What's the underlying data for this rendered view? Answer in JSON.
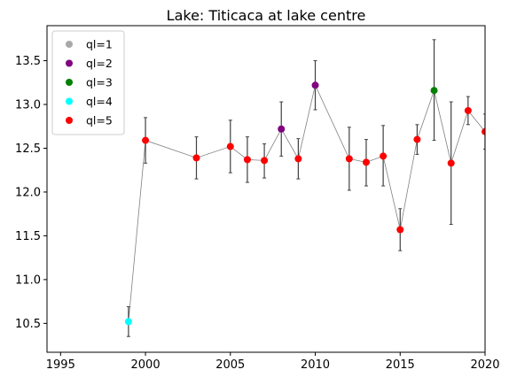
{
  "chart_data": {
    "type": "scatter",
    "title": "Lake: Titicaca at lake centre",
    "xlabel": "",
    "ylabel": "",
    "xlim": [
      1994.2,
      2020
    ],
    "ylim": [
      10.17,
      13.9
    ],
    "xticks": [
      1995,
      2000,
      2005,
      2010,
      2015,
      2020
    ],
    "xtick_labels": [
      "1995",
      "2000",
      "2005",
      "2010",
      "2015",
      "2020"
    ],
    "yticks": [
      10.5,
      11.0,
      11.5,
      12.0,
      12.5,
      13.0,
      13.5
    ],
    "ytick_labels": [
      "10.5",
      "11.0",
      "11.5",
      "12.0",
      "12.5",
      "13.0",
      "13.5"
    ],
    "grid": false,
    "legend_position": "top-left",
    "connecting_line_color": "#808080",
    "errorbar_color": "#404040",
    "legend": [
      {
        "label": "ql=1",
        "color": "#a9a9a9"
      },
      {
        "label": "ql=2",
        "color": "#800080"
      },
      {
        "label": "ql=3",
        "color": "#008000"
      },
      {
        "label": "ql=4",
        "color": "#00ffff"
      },
      {
        "label": "ql=5",
        "color": "#ff0000"
      }
    ],
    "points": [
      {
        "x": 1999,
        "y": 10.52,
        "ymin": 10.35,
        "ymax": 10.69,
        "ql": 4
      },
      {
        "x": 2000,
        "y": 12.59,
        "ymin": 12.33,
        "ymax": 12.85,
        "ql": 5
      },
      {
        "x": 2003,
        "y": 12.39,
        "ymin": 12.15,
        "ymax": 12.63,
        "ql": 5
      },
      {
        "x": 2005,
        "y": 12.52,
        "ymin": 12.22,
        "ymax": 12.82,
        "ql": 5
      },
      {
        "x": 2006,
        "y": 12.37,
        "ymin": 12.11,
        "ymax": 12.63,
        "ql": 5
      },
      {
        "x": 2007,
        "y": 12.36,
        "ymin": 12.16,
        "ymax": 12.55,
        "ql": 5
      },
      {
        "x": 2008,
        "y": 12.72,
        "ymin": 12.41,
        "ymax": 13.03,
        "ql": 2
      },
      {
        "x": 2009,
        "y": 12.38,
        "ymin": 12.15,
        "ymax": 12.61,
        "ql": 5
      },
      {
        "x": 2010,
        "y": 13.22,
        "ymin": 12.94,
        "ymax": 13.5,
        "ql": 2
      },
      {
        "x": 2012,
        "y": 12.38,
        "ymin": 12.02,
        "ymax": 12.74,
        "ql": 5
      },
      {
        "x": 2013,
        "y": 12.34,
        "ymin": 12.07,
        "ymax": 12.6,
        "ql": 5
      },
      {
        "x": 2014,
        "y": 12.41,
        "ymin": 12.07,
        "ymax": 12.76,
        "ql": 5
      },
      {
        "x": 2015,
        "y": 11.57,
        "ymin": 11.33,
        "ymax": 11.81,
        "ql": 5
      },
      {
        "x": 2016,
        "y": 12.6,
        "ymin": 12.43,
        "ymax": 12.77,
        "ql": 5
      },
      {
        "x": 2017,
        "y": 13.16,
        "ymin": 12.59,
        "ymax": 13.74,
        "ql": 3
      },
      {
        "x": 2018,
        "y": 12.33,
        "ymin": 11.63,
        "ymax": 13.03,
        "ql": 5
      },
      {
        "x": 2019,
        "y": 12.93,
        "ymin": 12.77,
        "ymax": 13.09,
        "ql": 5
      },
      {
        "x": 2020,
        "y": 12.69,
        "ymin": 12.49,
        "ymax": 12.89,
        "ql": 5
      }
    ]
  }
}
